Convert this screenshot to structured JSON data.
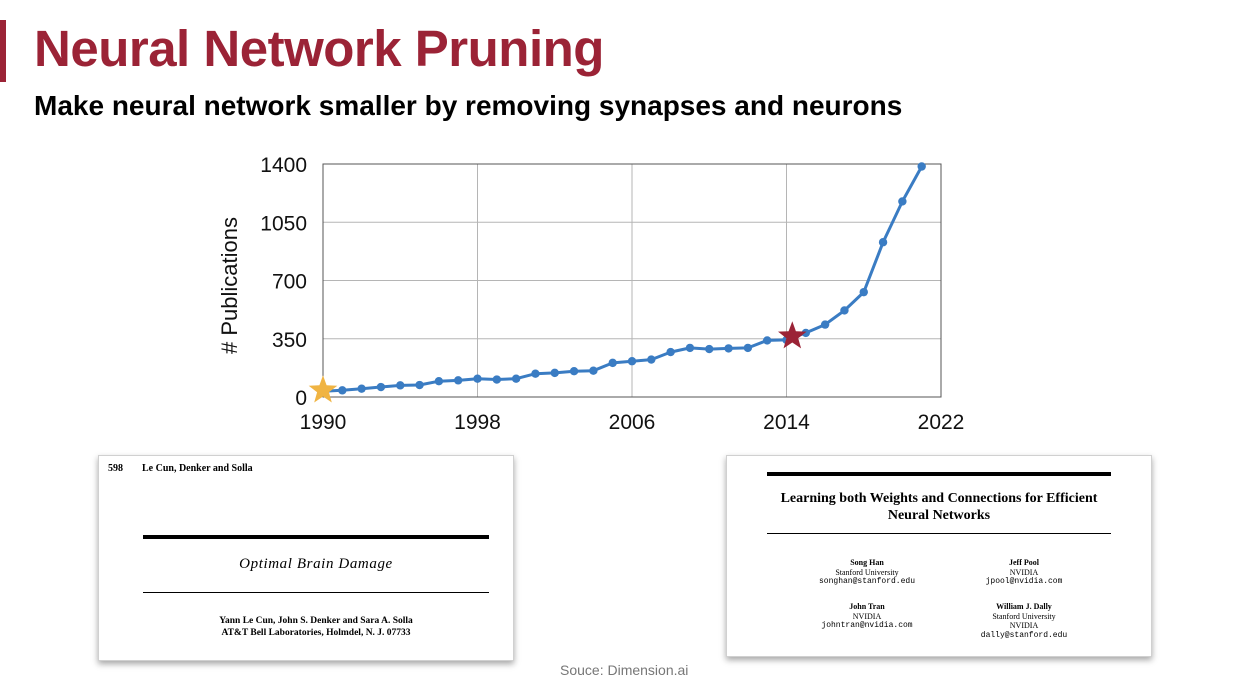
{
  "slide": {
    "title": "Neural Network Pruning",
    "subtitle": "Make neural network smaller by removing synapses and neurons",
    "source": "Souce: Dimension.ai",
    "colors": {
      "title": "#9b2336",
      "accent_bar": "#9b2336",
      "line": "#3a7cc3",
      "star_start": "#f0b443",
      "star_highlight": "#9b2336"
    }
  },
  "chart_data": {
    "type": "line",
    "ylabel": "# Publications",
    "xlim": [
      1990,
      2022
    ],
    "ylim": [
      0,
      1400
    ],
    "xticks": [
      1990,
      1998,
      2006,
      2014,
      2022
    ],
    "yticks": [
      0,
      350,
      700,
      1050,
      1400
    ],
    "grid": true,
    "series": [
      {
        "x": [
          1990,
          1991,
          1992,
          1993,
          1994,
          1995,
          1996,
          1997,
          1998,
          1999,
          2000,
          2001,
          2002,
          2003,
          2004,
          2005,
          2006,
          2007,
          2008,
          2009,
          2010,
          2011,
          2012,
          2013,
          2014,
          2015,
          2016,
          2017,
          2018,
          2019,
          2020,
          2021
        ],
        "y": [
          35,
          40,
          50,
          60,
          70,
          72,
          95,
          100,
          110,
          105,
          110,
          140,
          145,
          155,
          158,
          205,
          215,
          225,
          270,
          295,
          288,
          292,
          295,
          340,
          343,
          385,
          435,
          520,
          630,
          930,
          1175,
          1385
        ]
      }
    ],
    "markers": [
      {
        "shape": "star",
        "x": 1990,
        "y": 40,
        "color": "start"
      },
      {
        "shape": "star",
        "x": 2014.3,
        "y": 365,
        "color": "highlight"
      }
    ]
  },
  "papers": [
    {
      "page": "598",
      "running_head": "Le Cun, Denker and Solla",
      "title": "Optimal Brain Damage",
      "authors": "Yann Le Cun, John S. Denker and Sara A. Solla",
      "affiliation": "AT&T Bell Laboratories, Holmdel, N. J. 07733"
    },
    {
      "title_line1": "Learning both Weights and Connections for Efficient",
      "title_line2": "Neural Networks",
      "authors": [
        {
          "name": "Song Han",
          "affil": "Stanford University",
          "email": "songhan@stanford.edu"
        },
        {
          "name": "Jeff Pool",
          "affil": "NVIDIA",
          "email": "jpool@nvidia.com"
        },
        {
          "name": "John Tran",
          "affil": "NVIDIA",
          "email": "johntran@nvidia.com"
        },
        {
          "name": "William J. Dally",
          "affil": "Stanford University",
          "affil2": "NVIDIA",
          "email": "dally@stanford.edu"
        }
      ]
    }
  ]
}
